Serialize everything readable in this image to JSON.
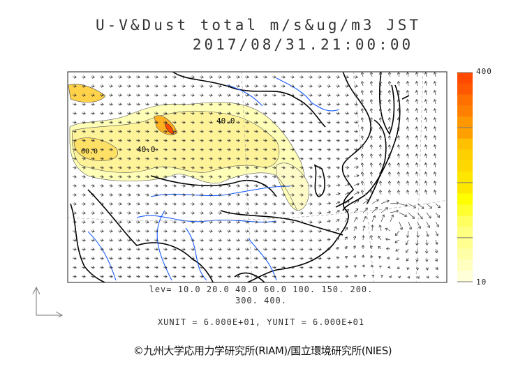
{
  "title": {
    "line1": "U-V&Dust total m/s&ug/m3 JST",
    "line2": "2017/08/31.21:00:00"
  },
  "colorbar": {
    "max_label": "400",
    "min_label": "10",
    "colors": [
      "#ff4a00",
      "#ff5800",
      "#ff7000",
      "#ff8000",
      "#ff9800",
      "#ffa000",
      "#ffc000",
      "#ffd000",
      "#ffd800",
      "#ffe600",
      "#ffe800",
      "#ffff00",
      "#ffff30",
      "#ffff60",
      "#ffff80",
      "#ffff90",
      "#ffffa8",
      "#ffffc0",
      "#ffffd8"
    ]
  },
  "map": {
    "contour_labels": [
      "40.0",
      "40.0",
      "60.0"
    ],
    "dust_color_low": "#ffffb0",
    "dust_color_high": "#ff4a00",
    "river_color": "#1a5cff"
  },
  "levels": {
    "line1": "lev= 10.0 20.0 40.0 60.0 100. 150. 200.",
    "line2": "300. 400."
  },
  "units": "XUNIT = 6.000E+01, YUNIT = 6.000E+01",
  "credit": "©九州大学応用力学研究所(RIAM)/国立環境研究所(NIES)"
}
